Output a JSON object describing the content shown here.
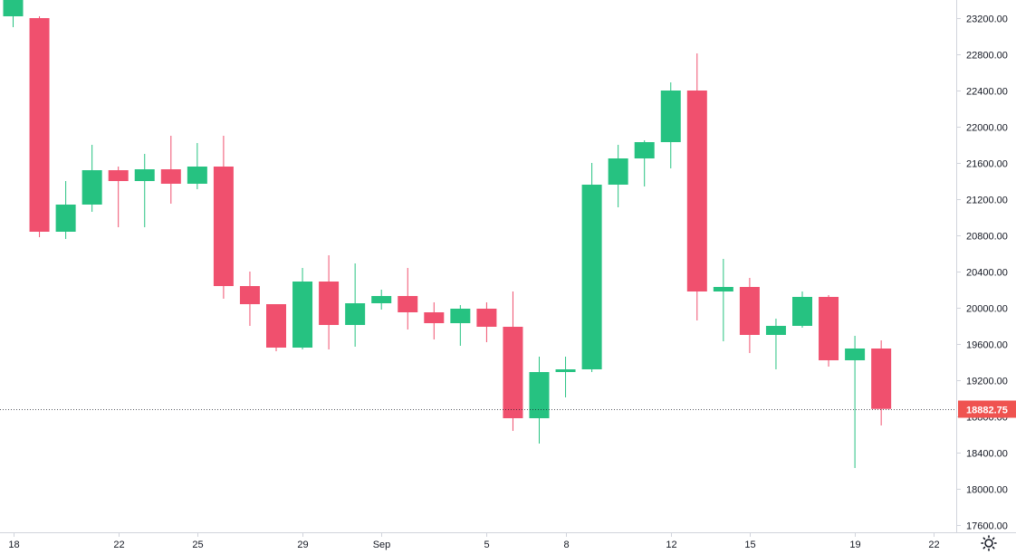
{
  "chart_data": {
    "type": "candlestick",
    "colors": {
      "up": "#26c281",
      "down": "#f0506e",
      "axis_line": "#d1d4dc",
      "axis_text": "#131722",
      "last_price_line": "#131722",
      "last_price_badge": "#ef5350"
    },
    "y_ticks": [
      "23200.00",
      "22800.00",
      "22400.00",
      "22000.00",
      "21600.00",
      "21200.00",
      "20800.00",
      "20400.00",
      "20000.00",
      "19600.00",
      "19200.00",
      "18800.00",
      "18400.00",
      "18000.00",
      "17600.00"
    ],
    "x_ticks": [
      {
        "label": "18",
        "index": 0
      },
      {
        "label": "22",
        "index": 4
      },
      {
        "label": "25",
        "index": 7
      },
      {
        "label": "29",
        "index": 11
      },
      {
        "label": "Sep",
        "index": 14
      },
      {
        "label": "5",
        "index": 18
      },
      {
        "label": "8",
        "index": 21
      },
      {
        "label": "12",
        "index": 25
      },
      {
        "label": "15",
        "index": 28
      },
      {
        "label": "19",
        "index": 32
      },
      {
        "label": "22",
        "index": 35
      }
    ],
    "last_price": "18882.75",
    "last_price_value": 18882.75,
    "ylim": [
      17600,
      23200
    ],
    "candles": [
      {
        "o": 23220,
        "h": 23420,
        "l": 23100,
        "c": 23400
      },
      {
        "o": 23200,
        "h": 23220,
        "l": 20780,
        "c": 20840
      },
      {
        "o": 20840,
        "h": 21400,
        "l": 20760,
        "c": 21140
      },
      {
        "o": 21140,
        "h": 21800,
        "l": 21060,
        "c": 21520
      },
      {
        "o": 21520,
        "h": 21560,
        "l": 20890,
        "c": 21400
      },
      {
        "o": 21400,
        "h": 21700,
        "l": 20890,
        "c": 21530
      },
      {
        "o": 21530,
        "h": 21900,
        "l": 21150,
        "c": 21370
      },
      {
        "o": 21370,
        "h": 21820,
        "l": 21310,
        "c": 21560
      },
      {
        "o": 21560,
        "h": 21900,
        "l": 20100,
        "c": 20240
      },
      {
        "o": 20240,
        "h": 20400,
        "l": 19800,
        "c": 20040
      },
      {
        "o": 20040,
        "h": 20040,
        "l": 19520,
        "c": 19560
      },
      {
        "o": 19560,
        "h": 20440,
        "l": 19540,
        "c": 20290
      },
      {
        "o": 20290,
        "h": 20580,
        "l": 19540,
        "c": 19810
      },
      {
        "o": 19810,
        "h": 20490,
        "l": 19570,
        "c": 20050
      },
      {
        "o": 20050,
        "h": 20200,
        "l": 19980,
        "c": 20130
      },
      {
        "o": 20130,
        "h": 20440,
        "l": 19760,
        "c": 19950
      },
      {
        "o": 19950,
        "h": 20060,
        "l": 19650,
        "c": 19830
      },
      {
        "o": 19830,
        "h": 20030,
        "l": 19580,
        "c": 19990
      },
      {
        "o": 19990,
        "h": 20060,
        "l": 19620,
        "c": 19790
      },
      {
        "o": 19790,
        "h": 20180,
        "l": 18640,
        "c": 18780
      },
      {
        "o": 18780,
        "h": 19460,
        "l": 18500,
        "c": 19290
      },
      {
        "o": 19290,
        "h": 19460,
        "l": 19010,
        "c": 19320
      },
      {
        "o": 19320,
        "h": 21600,
        "l": 19290,
        "c": 21360
      },
      {
        "o": 21360,
        "h": 21800,
        "l": 21110,
        "c": 21650
      },
      {
        "o": 21650,
        "h": 21850,
        "l": 21340,
        "c": 21830
      },
      {
        "o": 21830,
        "h": 22490,
        "l": 21540,
        "c": 22400
      },
      {
        "o": 22400,
        "h": 22810,
        "l": 19860,
        "c": 20180
      },
      {
        "o": 20180,
        "h": 20540,
        "l": 19630,
        "c": 20230
      },
      {
        "o": 20230,
        "h": 20330,
        "l": 19500,
        "c": 19700
      },
      {
        "o": 19700,
        "h": 19880,
        "l": 19320,
        "c": 19800
      },
      {
        "o": 19800,
        "h": 20180,
        "l": 19780,
        "c": 20120
      },
      {
        "o": 20120,
        "h": 20140,
        "l": 19350,
        "c": 19420
      },
      {
        "o": 19420,
        "h": 19690,
        "l": 18230,
        "c": 19550
      },
      {
        "o": 19550,
        "h": 19640,
        "l": 18700,
        "c": 18882.75
      }
    ]
  },
  "icons": {
    "settings": "gear-icon"
  }
}
